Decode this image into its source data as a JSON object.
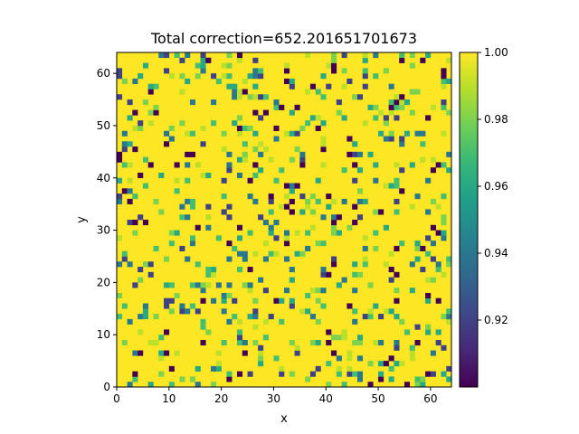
{
  "chart_data": {
    "type": "heatmap",
    "title": "Total correction=652.201651701673",
    "xlabel": "x",
    "ylabel": "y",
    "xlim": [
      0,
      64
    ],
    "ylim": [
      0,
      64
    ],
    "grid_size": [
      64,
      64
    ],
    "x_ticks": [
      "0",
      "10",
      "20",
      "30",
      "40",
      "50",
      "60"
    ],
    "y_ticks": [
      "0",
      "10",
      "20",
      "30",
      "40",
      "50",
      "60"
    ],
    "colorbar": {
      "colormap": "viridis",
      "range": [
        0.9,
        1.0
      ],
      "ticks": [
        "0.92",
        "0.94",
        "0.96",
        "0.98",
        "1.00"
      ],
      "colors": [
        "#440154",
        "#482878",
        "#3e4989",
        "#31688e",
        "#26828e",
        "#1f9e89",
        "#35b779",
        "#6ece58",
        "#b5de2b",
        "#fde725"
      ]
    },
    "value_distribution": {
      "fill_value": 1.0,
      "fraction_below_one": 0.16,
      "observed_levels": [
        0.9,
        0.92,
        0.94,
        0.96,
        0.97,
        0.98,
        0.99
      ]
    }
  }
}
